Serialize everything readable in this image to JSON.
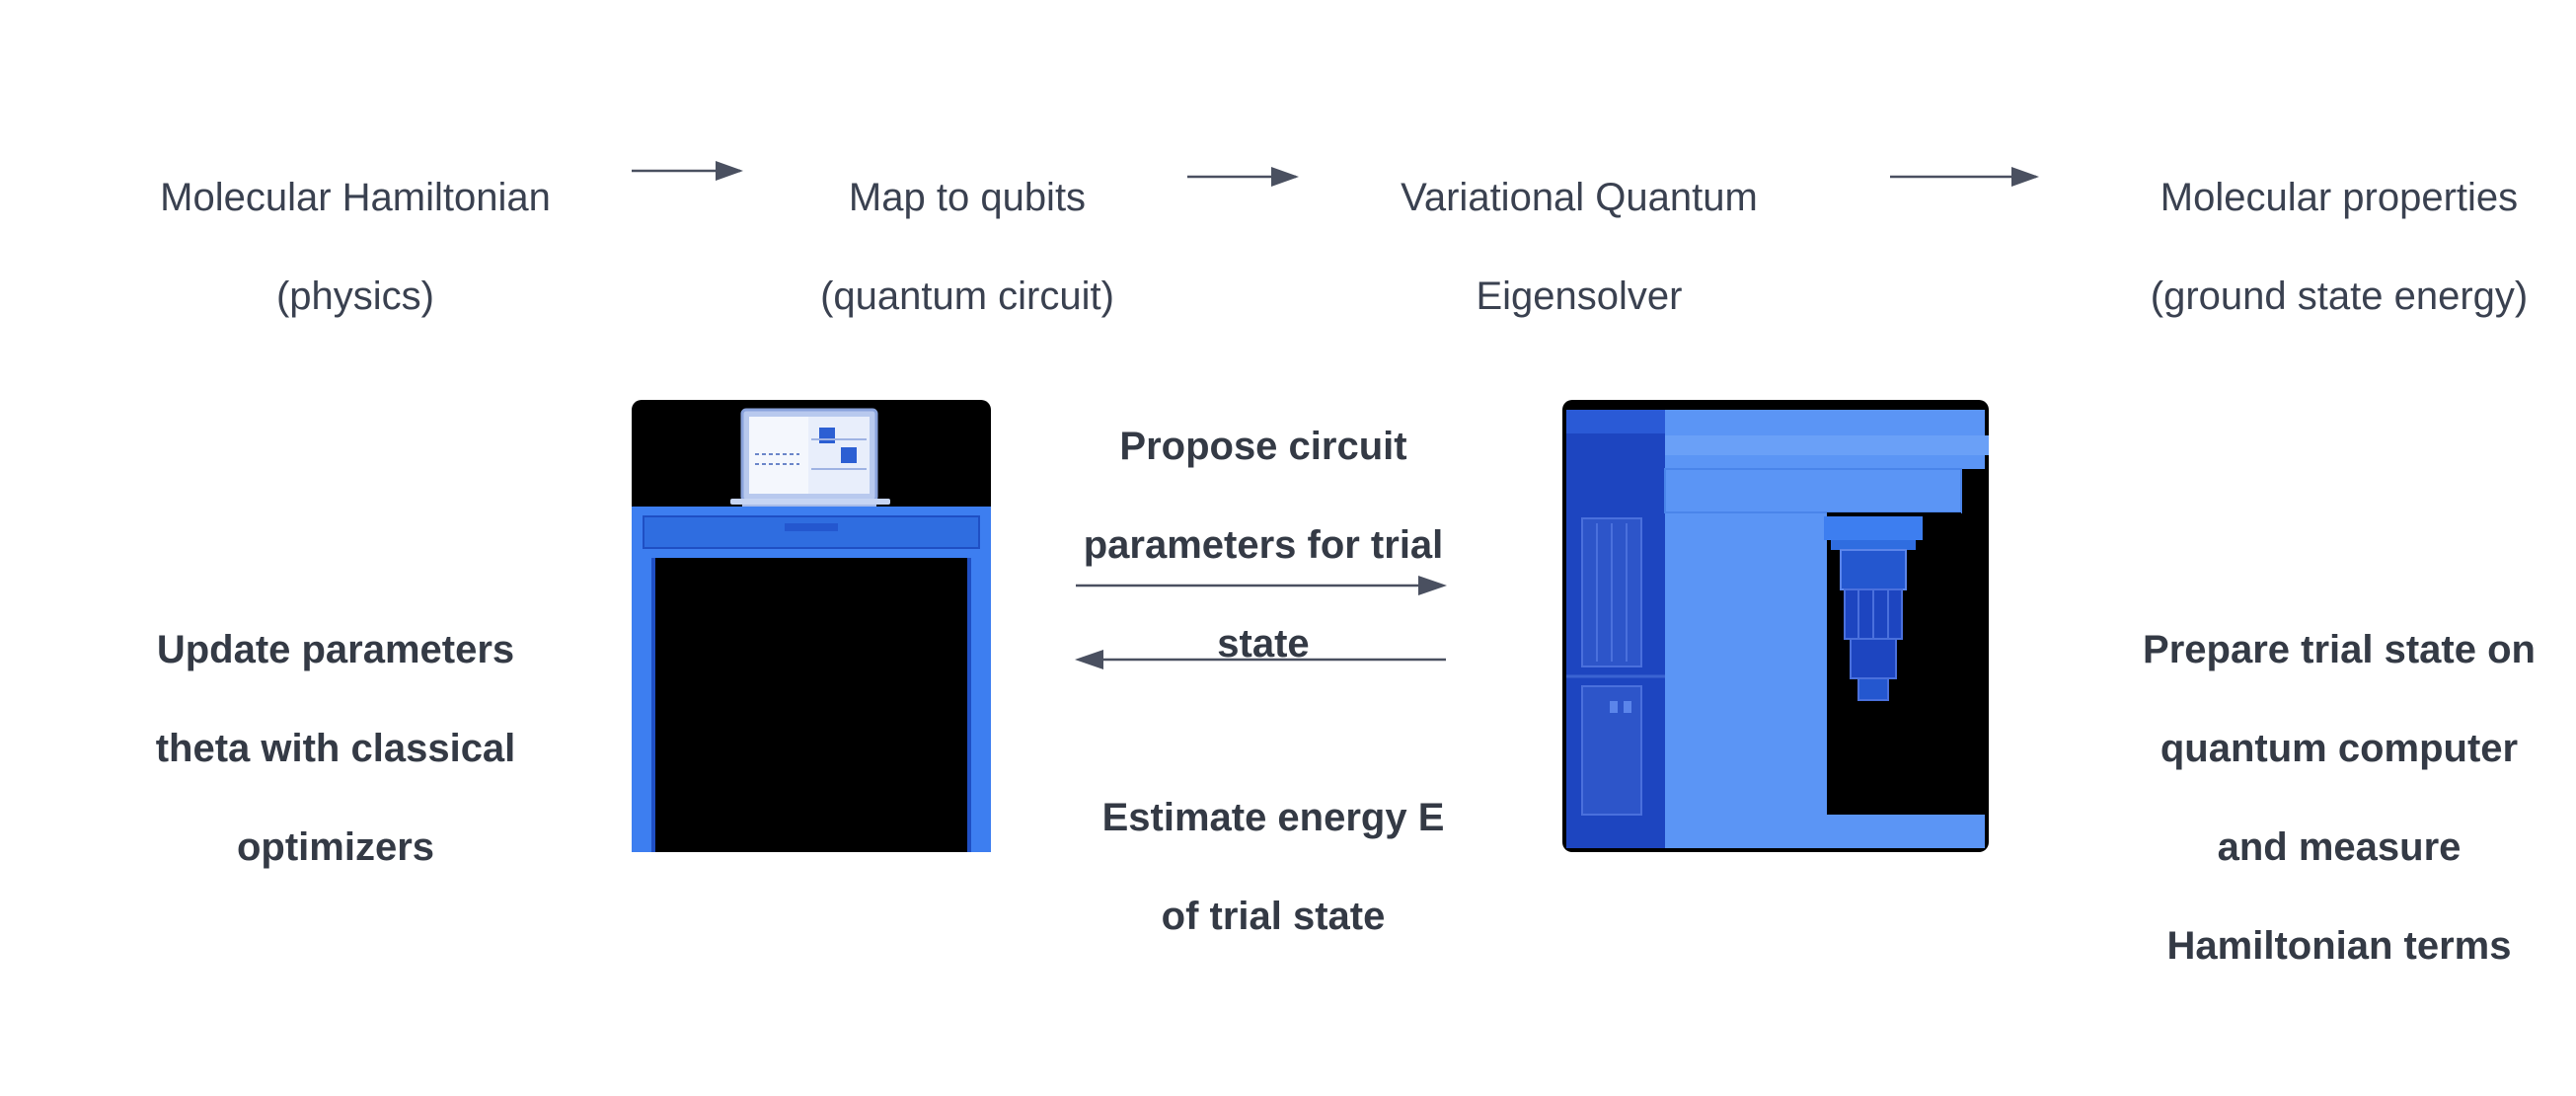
{
  "pipeline": {
    "steps": [
      {
        "line1": "Molecular Hamiltonian",
        "line2": "(physics)"
      },
      {
        "line1": "Map to qubits",
        "line2": "(quantum circuit)"
      },
      {
        "line1": "Variational Quantum",
        "line2": "Eigensolver"
      },
      {
        "line1": "Molecular properties",
        "line2": "(ground state energy)"
      }
    ]
  },
  "loop": {
    "classical_label": {
      "lines": [
        "Update parameters",
        "theta with classical",
        "optimizers"
      ]
    },
    "propose_label": {
      "lines": [
        "Propose circuit",
        "parameters for trial",
        "state"
      ]
    },
    "estimate_label": {
      "lines": [
        "Estimate energy E",
        "of trial state"
      ]
    },
    "quantum_label": {
      "lines": [
        "Prepare trial state on",
        "quantum computer",
        "and measure",
        "Hamiltonian terms"
      ]
    }
  },
  "colors": {
    "text": "#343a45",
    "arrow": "#4a5060",
    "accent_blue": "#3d7ef0",
    "dark_blue": "#1f4fc4",
    "light_blue": "#5b95f5"
  },
  "icons": {
    "classical": "classical-computer-icon",
    "quantum": "quantum-computer-icon"
  }
}
